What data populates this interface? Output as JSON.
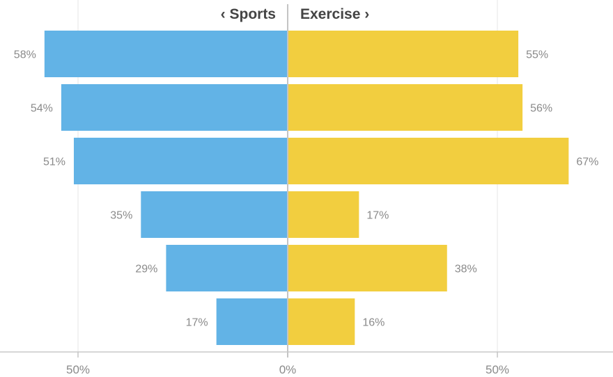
{
  "chart_data": {
    "type": "bar",
    "orientation": "horizontal-diverging",
    "left_series": {
      "name": "‹ Sports",
      "color": "#62b3e6",
      "values": [
        58,
        54,
        51,
        35,
        29,
        17
      ]
    },
    "right_series": {
      "name": "Exercise ›",
      "color": "#f2ce3f",
      "values": [
        55,
        56,
        67,
        17,
        38,
        16
      ]
    },
    "value_suffix": "%",
    "xlim": [
      -68,
      68
    ],
    "ticks": [
      {
        "value": -50,
        "label": "50%"
      },
      {
        "value": 0,
        "label": "0%"
      },
      {
        "value": 50,
        "label": "50%"
      }
    ],
    "grid": true
  }
}
